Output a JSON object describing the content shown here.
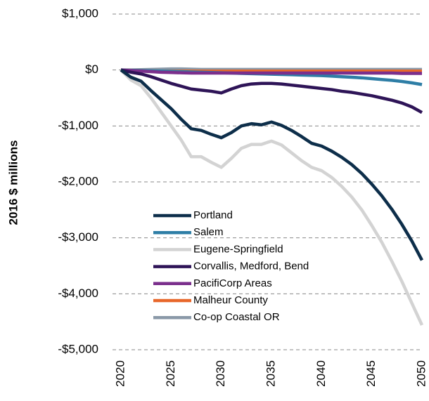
{
  "chart_data": {
    "type": "line",
    "y_label": "2016 $ millions",
    "x": [
      2020,
      2021,
      2022,
      2023,
      2024,
      2025,
      2026,
      2027,
      2028,
      2029,
      2030,
      2031,
      2032,
      2033,
      2034,
      2035,
      2036,
      2037,
      2038,
      2039,
      2040,
      2041,
      2042,
      2043,
      2044,
      2045,
      2046,
      2047,
      2048,
      2049,
      2050
    ],
    "xlim": [
      2020,
      2050
    ],
    "xticks": [
      2020,
      2025,
      2030,
      2035,
      2040,
      2045,
      2050
    ],
    "ylim": [
      -5000,
      1000
    ],
    "yticks": [
      {
        "value": 1000,
        "label": "$1,000"
      },
      {
        "value": 0,
        "label": "$0"
      },
      {
        "value": -1000,
        "label": "-$1,000"
      },
      {
        "value": -2000,
        "label": "-$2,000"
      },
      {
        "value": -3000,
        "label": "-$3,000"
      },
      {
        "value": -4000,
        "label": "-$4,000"
      },
      {
        "value": -5000,
        "label": "-$5,000"
      }
    ],
    "grid": true,
    "legend": "left",
    "series": [
      {
        "name": "Portland",
        "color": "#0d2e4a",
        "values": [
          0,
          -130,
          -200,
          -370,
          -530,
          -690,
          -880,
          -1050,
          -1080,
          -1150,
          -1210,
          -1120,
          -1000,
          -960,
          -980,
          -930,
          -990,
          -1080,
          -1190,
          -1310,
          -1360,
          -1450,
          -1560,
          -1690,
          -1850,
          -2040,
          -2250,
          -2490,
          -2760,
          -3060,
          -3400
        ]
      },
      {
        "name": "Salem",
        "color": "#2e7ea6",
        "values": [
          0,
          -5,
          -10,
          -15,
          -20,
          -25,
          -30,
          -35,
          -40,
          -45,
          -50,
          -55,
          -60,
          -65,
          -70,
          -75,
          -80,
          -85,
          -90,
          -95,
          -100,
          -110,
          -120,
          -130,
          -140,
          -155,
          -170,
          -185,
          -205,
          -230,
          -260
        ]
      },
      {
        "name": "Eugene-Springfield",
        "color": "#d3d3d3",
        "values": [
          0,
          -180,
          -280,
          -500,
          -750,
          -1000,
          -1250,
          -1550,
          -1550,
          -1650,
          -1740,
          -1580,
          -1400,
          -1330,
          -1330,
          -1270,
          -1340,
          -1480,
          -1620,
          -1740,
          -1800,
          -1920,
          -2080,
          -2270,
          -2500,
          -2780,
          -3080,
          -3420,
          -3780,
          -4170,
          -4560
        ]
      },
      {
        "name": "Corvallis, Medford, Bend",
        "color": "#2e1457",
        "values": [
          0,
          -40,
          -70,
          -120,
          -180,
          -240,
          -290,
          -340,
          -360,
          -380,
          -410,
          -340,
          -280,
          -250,
          -240,
          -240,
          -250,
          -270,
          -290,
          -310,
          -330,
          -350,
          -380,
          -400,
          -430,
          -460,
          -500,
          -540,
          -590,
          -660,
          -760
        ]
      },
      {
        "name": "PacifiCorp Areas",
        "color": "#7b2f8c",
        "values": [
          0,
          -10,
          -20,
          -30,
          -40,
          -45,
          -50,
          -55,
          -55,
          -55,
          -55,
          -55,
          -55,
          -55,
          -55,
          -55,
          -55,
          -55,
          -55,
          -55,
          -55,
          -55,
          -55,
          -55,
          -55,
          -55,
          -55,
          -55,
          -60,
          -60,
          -60
        ]
      },
      {
        "name": "Malheur County",
        "color": "#e8672a",
        "values": [
          0,
          -5,
          -10,
          -15,
          -20,
          -20,
          -20,
          -20,
          -20,
          -20,
          -20,
          -20,
          -20,
          -20,
          -20,
          -20,
          -20,
          -20,
          -20,
          -20,
          -20,
          -20,
          -20,
          -20,
          -20,
          -20,
          -20,
          -20,
          -20,
          -20,
          -20
        ]
      },
      {
        "name": "Co-op Coastal OR",
        "color": "#8a99a8",
        "values": [
          0,
          0,
          5,
          10,
          15,
          20,
          20,
          15,
          10,
          10,
          10,
          10,
          10,
          10,
          10,
          10,
          10,
          10,
          10,
          10,
          10,
          10,
          10,
          10,
          10,
          10,
          10,
          10,
          10,
          10,
          10
        ]
      }
    ]
  }
}
